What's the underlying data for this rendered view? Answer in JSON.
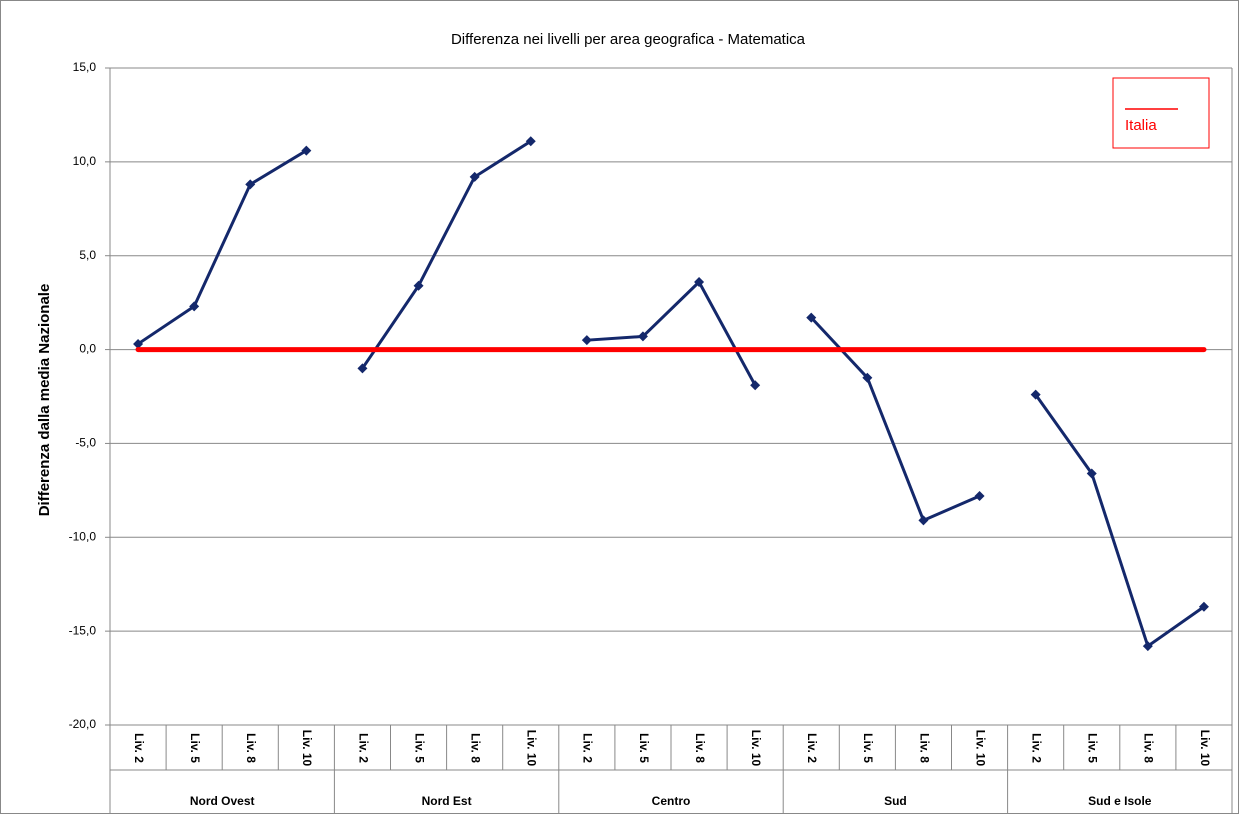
{
  "chart_data": {
    "type": "line",
    "title": "Differenza nei livelli per area geografica - Matematica",
    "y_label": "Differenza dalla media Nazionale",
    "groups": [
      {
        "name": "Nord Ovest",
        "categories": [
          "Liv. 2",
          "Liv. 5",
          "Liv. 8",
          "Liv. 10"
        ]
      },
      {
        "name": "Nord Est",
        "categories": [
          "Liv. 2",
          "Liv. 5",
          "Liv. 8",
          "Liv. 10"
        ]
      },
      {
        "name": "Centro",
        "categories": [
          "Liv. 2",
          "Liv. 5",
          "Liv. 8",
          "Liv. 10"
        ]
      },
      {
        "name": "Sud",
        "categories": [
          "Liv. 2",
          "Liv. 5",
          "Liv. 8",
          "Liv. 10"
        ]
      },
      {
        "name": "Sud e Isole",
        "categories": [
          "Liv. 2",
          "Liv. 5",
          "Liv. 8",
          "Liv. 10"
        ]
      }
    ],
    "series": [
      {
        "color": "#14286b",
        "values": [
          0.3,
          2.3,
          8.8,
          10.6,
          -1.0,
          3.4,
          9.2,
          11.1,
          0.5,
          0.7,
          3.6,
          -1.9,
          1.7,
          -1.5,
          -9.1,
          -7.8,
          -2.4,
          -6.6,
          -15.8,
          -13.7
        ]
      },
      {
        "name": "Italia",
        "color": "#ff0000",
        "values": [
          0,
          0,
          0,
          0,
          0,
          0,
          0,
          0,
          0,
          0,
          0,
          0,
          0,
          0,
          0,
          0,
          0,
          0,
          0,
          0
        ]
      }
    ],
    "ylim": [
      -20,
      15
    ],
    "yticks": [
      {
        "value": -20,
        "label": "-20,0"
      },
      {
        "value": -15,
        "label": "-15,0"
      },
      {
        "value": -10,
        "label": "-10,0"
      },
      {
        "value": -5,
        "label": "-5,0"
      },
      {
        "value": 0,
        "label": "0,0"
      },
      {
        "value": 5,
        "label": "5,0"
      },
      {
        "value": 10,
        "label": "10,0"
      },
      {
        "value": 15,
        "label": "15,0"
      }
    ],
    "grid": true,
    "legend": "top-right"
  }
}
